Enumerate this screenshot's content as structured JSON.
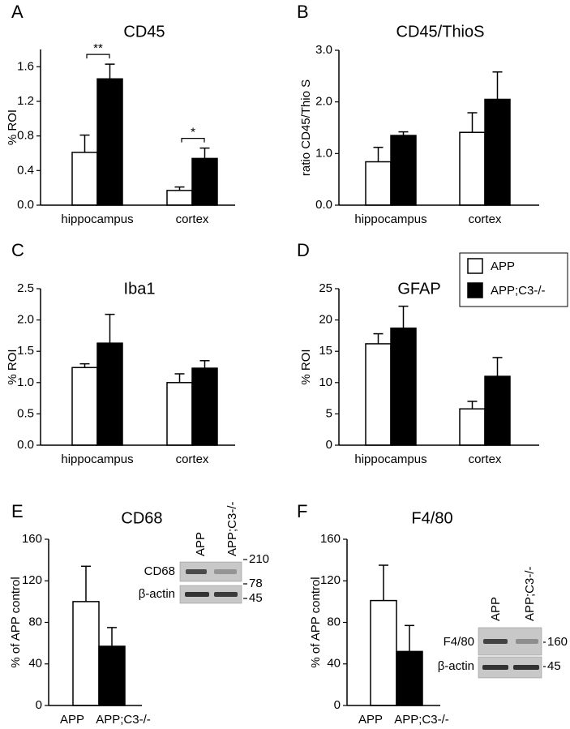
{
  "chart_data": [
    {
      "type": "bar",
      "panel": "A",
      "title": "CD45",
      "y_label": "% ROI",
      "categories": [
        "hippocampus",
        "cortex"
      ],
      "series": [
        {
          "name": "APP",
          "color": "#ffffff",
          "values": [
            0.61,
            0.17
          ],
          "error": [
            0.2,
            0.04
          ]
        },
        {
          "name": "APP;C3-/-",
          "color": "#000000",
          "values": [
            1.46,
            0.54
          ],
          "error": [
            0.17,
            0.12
          ]
        }
      ],
      "annotations": [
        "**",
        "*"
      ],
      "ylim": [
        0,
        1.8
      ],
      "yticks": [
        {
          "value": 0,
          "label": "0.0"
        },
        0.4,
        0.8,
        1.2,
        1.6
      ]
    },
    {
      "type": "bar",
      "panel": "B",
      "title": "CD45/ThioS",
      "y_label": "ratio CD45/Thio S",
      "categories": [
        "hippocampus",
        "cortex"
      ],
      "series": [
        {
          "name": "APP",
          "color": "#ffffff",
          "values": [
            0.84,
            1.41
          ],
          "error": [
            0.28,
            0.38
          ]
        },
        {
          "name": "APP;C3-/-",
          "color": "#000000",
          "values": [
            1.35,
            2.05
          ],
          "error": [
            0.07,
            0.53
          ]
        }
      ],
      "ylim": [
        0,
        3
      ],
      "yticks": [
        {
          "value": 0,
          "label": "0.0"
        },
        {
          "value": 1,
          "label": "1.0"
        },
        {
          "value": 2,
          "label": "2.0"
        },
        {
          "value": 3,
          "label": "3.0"
        }
      ]
    },
    {
      "type": "bar",
      "panel": "C",
      "title": "Iba1",
      "y_label": "% ROI",
      "categories": [
        "hippocampus",
        "cortex"
      ],
      "series": [
        {
          "name": "APP",
          "color": "#ffffff",
          "values": [
            1.24,
            1.0
          ],
          "error": [
            0.06,
            0.14
          ]
        },
        {
          "name": "APP;C3-/-",
          "color": "#000000",
          "values": [
            1.63,
            1.23
          ],
          "error": [
            0.46,
            0.12
          ]
        }
      ],
      "ylim": [
        0,
        2.5
      ],
      "yticks": [
        {
          "value": 0,
          "label": "0.0"
        },
        0.5,
        {
          "value": 1,
          "label": "1.0"
        },
        1.5,
        {
          "value": 2,
          "label": "2.0"
        },
        2.5
      ]
    },
    {
      "type": "bar",
      "panel": "D",
      "title": "GFAP",
      "y_label": "% ROI",
      "categories": [
        "hippocampus",
        "cortex"
      ],
      "series": [
        {
          "name": "APP",
          "color": "#ffffff",
          "values": [
            16.2,
            5.8
          ],
          "error": [
            1.6,
            1.2
          ]
        },
        {
          "name": "APP;C3-/-",
          "color": "#000000",
          "values": [
            18.7,
            11.0
          ],
          "error": [
            3.5,
            3.0
          ]
        }
      ],
      "legend": "upper right",
      "ylim": [
        0,
        25
      ],
      "yticks": [
        0,
        5,
        10,
        15,
        20,
        25
      ]
    },
    {
      "type": "bar",
      "panel": "E",
      "title": "CD68",
      "y_label": "% of APP control",
      "categories": [
        "APP",
        "APP;C3-/-"
      ],
      "values": [
        100,
        57
      ],
      "error": [
        34,
        18
      ],
      "colors": [
        "#ffffff",
        "#000000"
      ],
      "ylim": [
        0,
        160
      ],
      "yticks": [
        0,
        40,
        80,
        120,
        160
      ],
      "blot": {
        "lanes": [
          "APP",
          "APP;C3-/-"
        ],
        "rows": [
          "CD68",
          "β-actin"
        ],
        "markers": [
          210,
          78,
          45
        ]
      }
    },
    {
      "type": "bar",
      "panel": "F",
      "title": "F4/80",
      "y_label": "% of APP control",
      "categories": [
        "APP",
        "APP;C3-/-"
      ],
      "values": [
        101,
        52
      ],
      "error": [
        34,
        25
      ],
      "colors": [
        "#ffffff",
        "#000000"
      ],
      "ylim": [
        0,
        160
      ],
      "yticks": [
        0,
        40,
        80,
        120,
        160
      ],
      "blot": {
        "lanes": [
          "APP",
          "APP;C3-/-"
        ],
        "rows": [
          "F4/80",
          "β-actin"
        ],
        "markers": [
          160,
          45
        ]
      }
    }
  ]
}
